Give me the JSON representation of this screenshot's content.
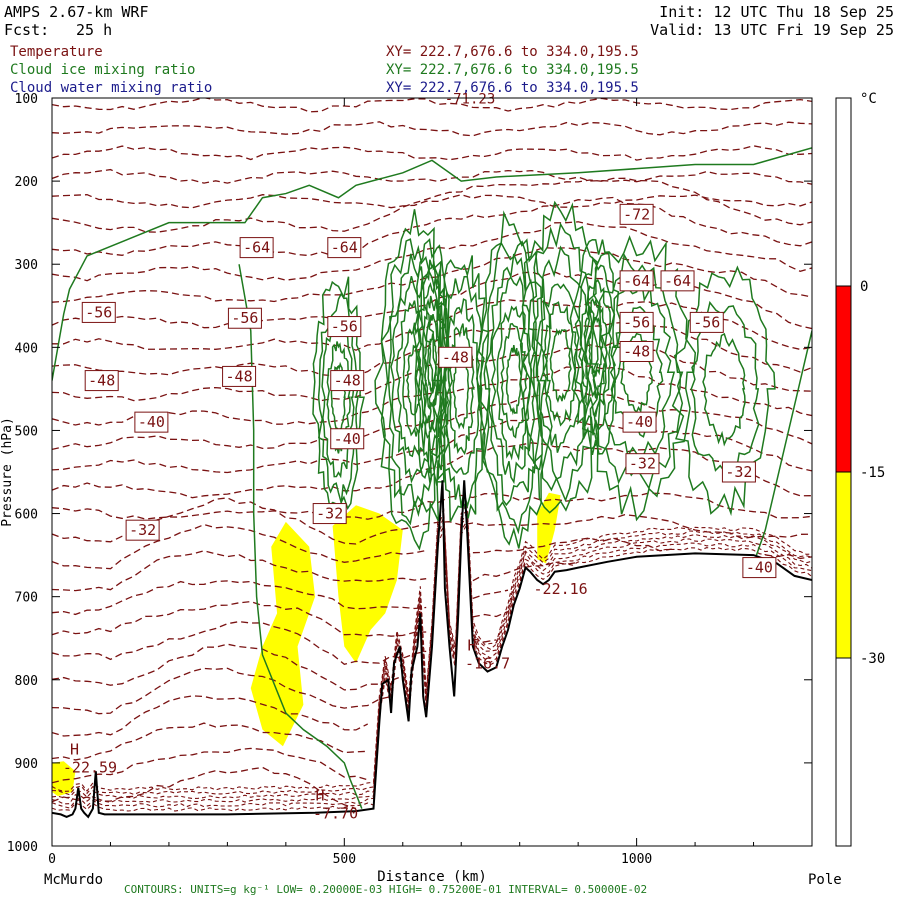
{
  "header": {
    "model": "AMPS 2.67-km WRF",
    "forecast_label": "Fcst:",
    "forecast_value": "25 h",
    "init": "Init: 12 UTC Thu 18 Sep 25",
    "valid": "Valid: 13 UTC Fri 19 Sep 25"
  },
  "legend": [
    {
      "name": "Temperature",
      "xy": "XY= 222.7,676.6 to 334.0,195.5",
      "color": "#7a1212"
    },
    {
      "name": "Cloud ice mixing ratio",
      "xy": "XY= 222.7,676.6 to 334.0,195.5",
      "color": "#1f7a1f"
    },
    {
      "name": "Cloud water mixing ratio",
      "xy": "XY= 222.7,676.6 to 334.0,195.5",
      "color": "#1c1c8c"
    }
  ],
  "colors": {
    "temperature": "#7a1212",
    "cloud_ice": "#1f7a1f",
    "cloud_water_fill": "#ffff00",
    "terrain": "#000000",
    "label_box": "#7a1212"
  },
  "footer": {
    "left_endpoint": "McMurdo",
    "right_endpoint": "Pole",
    "contours": "CONTOURS:  UNITS=g kg⁻¹  LOW= 0.20000E-03  HIGH= 0.75200E-01  INTERVAL=  0.50000E-02"
  },
  "chart_data": {
    "type": "cross-section",
    "xlabel": "Distance (km)",
    "ylabel": "Pressure (hPa)",
    "xlim": [
      0,
      1300
    ],
    "ylim": [
      1000,
      100
    ],
    "x_ticks": [
      "0",
      "500",
      "1000"
    ],
    "y_ticks": [
      "100",
      "200",
      "300",
      "400",
      "500",
      "600",
      "700",
      "800",
      "900",
      "1000"
    ],
    "temperature_isotherms_C": [
      -72,
      -64,
      -56,
      -48,
      -40,
      -32
    ],
    "temperature_labels": [
      {
        "x": 80,
        "p": 358,
        "text": "-56"
      },
      {
        "x": 85,
        "p": 440,
        "text": "-48"
      },
      {
        "x": 170,
        "p": 490,
        "text": "-40"
      },
      {
        "x": 155,
        "p": 620,
        "text": "-32"
      },
      {
        "x": 350,
        "p": 280,
        "text": "-64"
      },
      {
        "x": 330,
        "p": 365,
        "text": "-56"
      },
      {
        "x": 320,
        "p": 435,
        "text": "-48"
      },
      {
        "x": 500,
        "p": 280,
        "text": "-64"
      },
      {
        "x": 500,
        "p": 375,
        "text": "-56"
      },
      {
        "x": 505,
        "p": 440,
        "text": "-48"
      },
      {
        "x": 505,
        "p": 510,
        "text": "-40"
      },
      {
        "x": 475,
        "p": 600,
        "text": "-32"
      },
      {
        "x": 690,
        "p": 412,
        "text": "-48"
      },
      {
        "x": 1000,
        "p": 240,
        "text": "-72"
      },
      {
        "x": 1000,
        "p": 320,
        "text": "-64"
      },
      {
        "x": 1070,
        "p": 320,
        "text": "-64"
      },
      {
        "x": 1000,
        "p": 370,
        "text": "-56"
      },
      {
        "x": 1120,
        "p": 370,
        "text": "-56"
      },
      {
        "x": 1000,
        "p": 405,
        "text": "-48"
      },
      {
        "x": 1005,
        "p": 490,
        "text": "-40"
      },
      {
        "x": 1010,
        "p": 540,
        "text": "-32"
      },
      {
        "x": 1175,
        "p": 550,
        "text": "-32"
      },
      {
        "x": 1210,
        "p": 665,
        "text": "-40"
      }
    ],
    "minima_labels": [
      {
        "x": 715,
        "p": 102,
        "text": "-71.23"
      }
    ],
    "high_labels": [
      {
        "x": 65,
        "p": 890,
        "h": "H",
        "value": "-22.59"
      },
      {
        "x": 485,
        "p": 945,
        "h": "H",
        "value": "-7.70"
      },
      {
        "x": 745,
        "p": 765,
        "h": "H",
        "value": "-16.7"
      },
      {
        "x": 870,
        "p": 675,
        "h": "",
        "value": "-22.16"
      }
    ],
    "colorbar": {
      "unit": "°C",
      "ticks": [
        "0",
        "-15",
        "-30"
      ],
      "segments": [
        {
          "from": 0,
          "to": -15,
          "color": "#ff0000"
        },
        {
          "from": -15,
          "to": -30,
          "color": "#ffff00"
        }
      ]
    },
    "terrain_profile": [
      [
        0,
        960
      ],
      [
        15,
        962
      ],
      [
        25,
        965
      ],
      [
        35,
        962
      ],
      [
        40,
        955
      ],
      [
        45,
        930
      ],
      [
        50,
        955
      ],
      [
        55,
        960
      ],
      [
        62,
        965
      ],
      [
        70,
        955
      ],
      [
        75,
        910
      ],
      [
        80,
        960
      ],
      [
        90,
        962
      ],
      [
        150,
        962
      ],
      [
        300,
        962
      ],
      [
        450,
        960
      ],
      [
        520,
        958
      ],
      [
        550,
        955
      ],
      [
        560,
        850
      ],
      [
        565,
        805
      ],
      [
        575,
        800
      ],
      [
        580,
        840
      ],
      [
        585,
        780
      ],
      [
        595,
        760
      ],
      [
        600,
        800
      ],
      [
        610,
        850
      ],
      [
        615,
        790
      ],
      [
        625,
        760
      ],
      [
        630,
        720
      ],
      [
        635,
        820
      ],
      [
        640,
        845
      ],
      [
        650,
        760
      ],
      [
        660,
        640
      ],
      [
        668,
        560
      ],
      [
        672,
        690
      ],
      [
        680,
        760
      ],
      [
        688,
        820
      ],
      [
        695,
        720
      ],
      [
        700,
        630
      ],
      [
        705,
        560
      ],
      [
        710,
        620
      ],
      [
        720,
        760
      ],
      [
        730,
        780
      ],
      [
        745,
        790
      ],
      [
        760,
        785
      ],
      [
        770,
        760
      ],
      [
        780,
        740
      ],
      [
        790,
        710
      ],
      [
        800,
        690
      ],
      [
        810,
        665
      ],
      [
        818,
        670
      ],
      [
        830,
        680
      ],
      [
        840,
        685
      ],
      [
        850,
        680
      ],
      [
        860,
        670
      ],
      [
        880,
        668
      ],
      [
        900,
        665
      ],
      [
        950,
        658
      ],
      [
        1000,
        652
      ],
      [
        1100,
        648
      ],
      [
        1200,
        650
      ],
      [
        1240,
        660
      ],
      [
        1270,
        675
      ],
      [
        1300,
        680
      ]
    ]
  }
}
